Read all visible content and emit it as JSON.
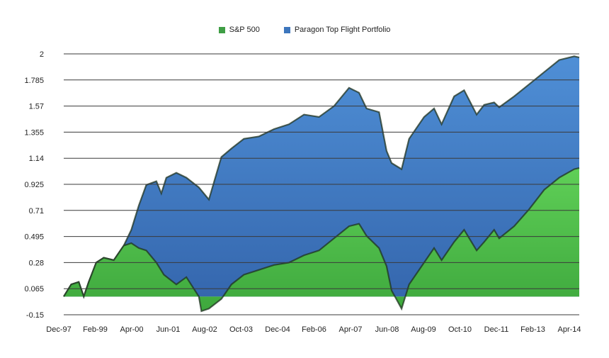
{
  "chart_data": {
    "type": "area",
    "title": "",
    "xlabel": "",
    "ylabel": "",
    "ylim": [
      -0.15,
      2
    ],
    "yticks": [
      "2",
      "1.785",
      "1.57",
      "1.355",
      "1.14",
      "0.925",
      "0.71",
      "0.495",
      "0.28",
      "0.065",
      "-0.15"
    ],
    "xticks": [
      "Dec-97",
      "Feb-99",
      "Apr-00",
      "Jun-01",
      "Aug-02",
      "Oct-03",
      "Dec-04",
      "Feb-06",
      "Apr-07",
      "Jun-08",
      "Aug-09",
      "Oct-10",
      "Dec-11",
      "Feb-13",
      "Apr-14"
    ],
    "x_range": [
      "1997-12",
      "2015-02"
    ],
    "grid": true,
    "legend_position": "top-center",
    "series": [
      {
        "name": "S&P 500",
        "color": "#3f9e45",
        "points": [
          [
            "1997-12",
            0.0
          ],
          [
            "1998-03",
            0.1
          ],
          [
            "1998-06",
            0.12
          ],
          [
            "1998-08",
            0.0
          ],
          [
            "1998-10",
            0.12
          ],
          [
            "1999-01",
            0.28
          ],
          [
            "1999-04",
            0.32
          ],
          [
            "1999-08",
            0.3
          ],
          [
            "1999-12",
            0.42
          ],
          [
            "2000-03",
            0.44
          ],
          [
            "2000-06",
            0.4
          ],
          [
            "2000-09",
            0.38
          ],
          [
            "2001-01",
            0.28
          ],
          [
            "2001-04",
            0.18
          ],
          [
            "2001-09",
            0.1
          ],
          [
            "2002-01",
            0.16
          ],
          [
            "2002-06",
            0.0
          ],
          [
            "2002-07",
            -0.12
          ],
          [
            "2002-10",
            -0.1
          ],
          [
            "2003-03",
            -0.02
          ],
          [
            "2003-07",
            0.1
          ],
          [
            "2003-12",
            0.18
          ],
          [
            "2004-06",
            0.22
          ],
          [
            "2004-12",
            0.26
          ],
          [
            "2005-06",
            0.28
          ],
          [
            "2005-12",
            0.34
          ],
          [
            "2006-06",
            0.38
          ],
          [
            "2006-12",
            0.48
          ],
          [
            "2007-06",
            0.58
          ],
          [
            "2007-10",
            0.6
          ],
          [
            "2008-01",
            0.5
          ],
          [
            "2008-06",
            0.4
          ],
          [
            "2008-09",
            0.25
          ],
          [
            "2008-11",
            0.05
          ],
          [
            "2009-03",
            -0.1
          ],
          [
            "2009-06",
            0.1
          ],
          [
            "2009-12",
            0.28
          ],
          [
            "2010-04",
            0.4
          ],
          [
            "2010-07",
            0.3
          ],
          [
            "2010-12",
            0.45
          ],
          [
            "2011-04",
            0.55
          ],
          [
            "2011-09",
            0.38
          ],
          [
            "2011-12",
            0.45
          ],
          [
            "2012-04",
            0.55
          ],
          [
            "2012-06",
            0.48
          ],
          [
            "2012-12",
            0.58
          ],
          [
            "2013-06",
            0.72
          ],
          [
            "2013-12",
            0.88
          ],
          [
            "2014-06",
            0.98
          ],
          [
            "2014-12",
            1.05
          ],
          [
            "2015-02",
            1.06
          ]
        ]
      },
      {
        "name": "Paragon Top Flight Portfolio",
        "color": "#3d76bd",
        "points": [
          [
            "1997-12",
            0.0
          ],
          [
            "1998-03",
            0.1
          ],
          [
            "1998-06",
            0.12
          ],
          [
            "1998-08",
            0.0
          ],
          [
            "1998-10",
            0.12
          ],
          [
            "1999-01",
            0.28
          ],
          [
            "1999-04",
            0.32
          ],
          [
            "1999-08",
            0.3
          ],
          [
            "1999-12",
            0.42
          ],
          [
            "2000-03",
            0.55
          ],
          [
            "2000-06",
            0.75
          ],
          [
            "2000-09",
            0.92
          ],
          [
            "2001-01",
            0.95
          ],
          [
            "2001-03",
            0.85
          ],
          [
            "2001-05",
            0.98
          ],
          [
            "2001-09",
            1.02
          ],
          [
            "2002-01",
            0.98
          ],
          [
            "2002-06",
            0.9
          ],
          [
            "2002-10",
            0.8
          ],
          [
            "2003-03",
            1.15
          ],
          [
            "2003-07",
            1.22
          ],
          [
            "2003-12",
            1.3
          ],
          [
            "2004-06",
            1.32
          ],
          [
            "2004-12",
            1.38
          ],
          [
            "2005-06",
            1.42
          ],
          [
            "2005-12",
            1.5
          ],
          [
            "2006-06",
            1.48
          ],
          [
            "2006-12",
            1.57
          ],
          [
            "2007-06",
            1.72
          ],
          [
            "2007-10",
            1.68
          ],
          [
            "2008-01",
            1.55
          ],
          [
            "2008-06",
            1.52
          ],
          [
            "2008-09",
            1.2
          ],
          [
            "2008-11",
            1.1
          ],
          [
            "2009-03",
            1.05
          ],
          [
            "2009-06",
            1.3
          ],
          [
            "2009-12",
            1.48
          ],
          [
            "2010-04",
            1.55
          ],
          [
            "2010-07",
            1.42
          ],
          [
            "2010-12",
            1.65
          ],
          [
            "2011-04",
            1.7
          ],
          [
            "2011-09",
            1.5
          ],
          [
            "2011-12",
            1.58
          ],
          [
            "2012-04",
            1.6
          ],
          [
            "2012-06",
            1.56
          ],
          [
            "2012-12",
            1.65
          ],
          [
            "2013-06",
            1.75
          ],
          [
            "2013-12",
            1.85
          ],
          [
            "2014-06",
            1.95
          ],
          [
            "2014-12",
            1.98
          ],
          [
            "2015-02",
            1.97
          ]
        ]
      }
    ]
  }
}
